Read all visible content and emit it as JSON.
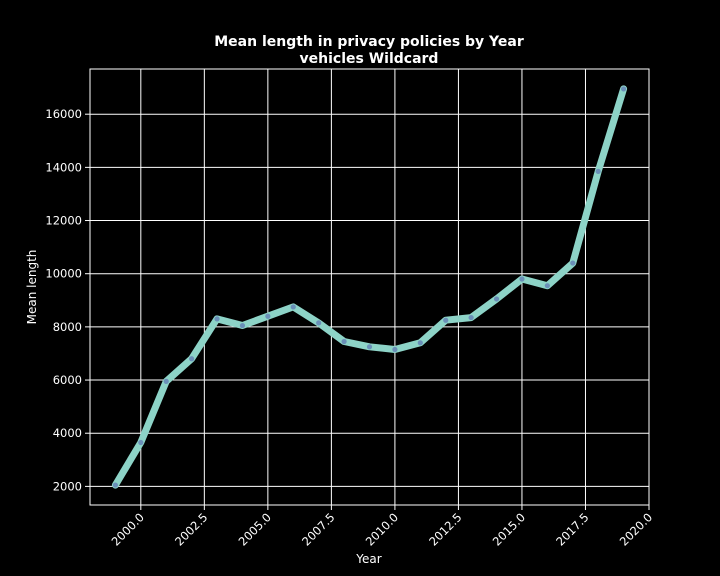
{
  "chart_data": {
    "type": "line",
    "title": "Mean length in privacy policies by Year",
    "subtitle": "vehicles Wildcard",
    "xlabel": "Year",
    "ylabel": "Mean length",
    "xlim": [
      1998.0,
      2020.0
    ],
    "ylim": [
      1300,
      17700
    ],
    "x_ticks": [
      2000.0,
      2002.5,
      2005.0,
      2007.5,
      2010.0,
      2012.5,
      2015.0,
      2017.5,
      2020.0
    ],
    "x_tick_labels": [
      "2000.0",
      "2002.5",
      "2005.0",
      "2007.5",
      "2010.0",
      "2012.5",
      "2015.0",
      "2017.5",
      "2020.0"
    ],
    "y_ticks": [
      2000,
      4000,
      6000,
      8000,
      10000,
      12000,
      14000,
      16000
    ],
    "y_tick_labels": [
      "2000",
      "4000",
      "6000",
      "8000",
      "10000",
      "12000",
      "14000",
      "16000"
    ],
    "grid": true,
    "colors": {
      "background": "#000000",
      "line": "#8dd3c7",
      "marker": "#6a8fb8",
      "grid": "#ffffff",
      "text": "#ffffff"
    },
    "series": [
      {
        "x": [
          1999,
          2000,
          2001,
          2002,
          2003,
          2004,
          2005,
          2006,
          2007,
          2008,
          2009,
          2010,
          2011,
          2012,
          2013,
          2014,
          2015,
          2016,
          2017,
          2018,
          2019
        ],
        "values": [
          2050,
          3650,
          5950,
          6800,
          8300,
          8050,
          8400,
          8750,
          8150,
          7450,
          7250,
          7150,
          7400,
          8250,
          8350,
          9050,
          9800,
          9550,
          10400,
          13850,
          16950
        ]
      }
    ]
  }
}
